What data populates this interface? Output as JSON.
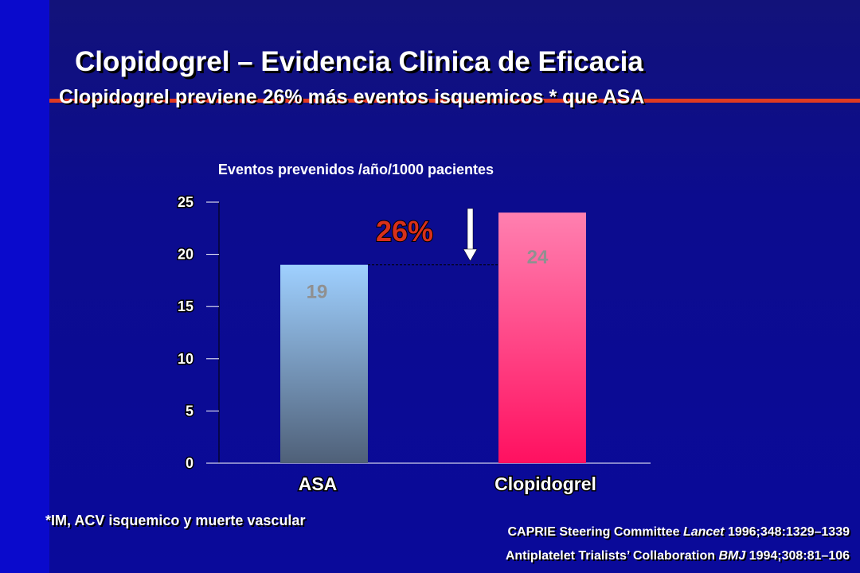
{
  "slide": {
    "title": "Clopidogrel – Evidencia Clinica de Eficacia",
    "subtitle": "Clopidogrel previene 26% más eventos isquemicos * que ASA",
    "footnote": "*IM, ACV isquemico y muerte vascular",
    "references": [
      {
        "pre": "CAPRIE Steering Committee ",
        "journal": "Lancet",
        "post": " 1996;348:1329–1339"
      },
      {
        "pre": "Antiplatelet Trialists’ Collaboration ",
        "journal": "BMJ",
        "post": " 1994;308:81–106"
      }
    ]
  },
  "colors": {
    "background": "#0c0c8e",
    "accent_line": "#e03a22",
    "asa_bar_top": "#9fd0ff",
    "asa_bar_bottom": "#4f6078",
    "clopidogrel_bar_top": "#ff80b0",
    "clopidogrel_bar_bottom": "#ff1060",
    "annotation": "#d8301a",
    "value_label": "#909090"
  },
  "chart_data": {
    "type": "bar",
    "title": "Eventos prevenidos /año/1000 pacientes",
    "categories": [
      "ASA",
      "Clopidogrel"
    ],
    "values": [
      19,
      24
    ],
    "value_labels": [
      "19",
      "24"
    ],
    "ylim": [
      0,
      25
    ],
    "yticks": [
      0,
      5,
      10,
      15,
      20,
      25
    ],
    "annotation": "26%",
    "grid": false,
    "legend": "none"
  }
}
